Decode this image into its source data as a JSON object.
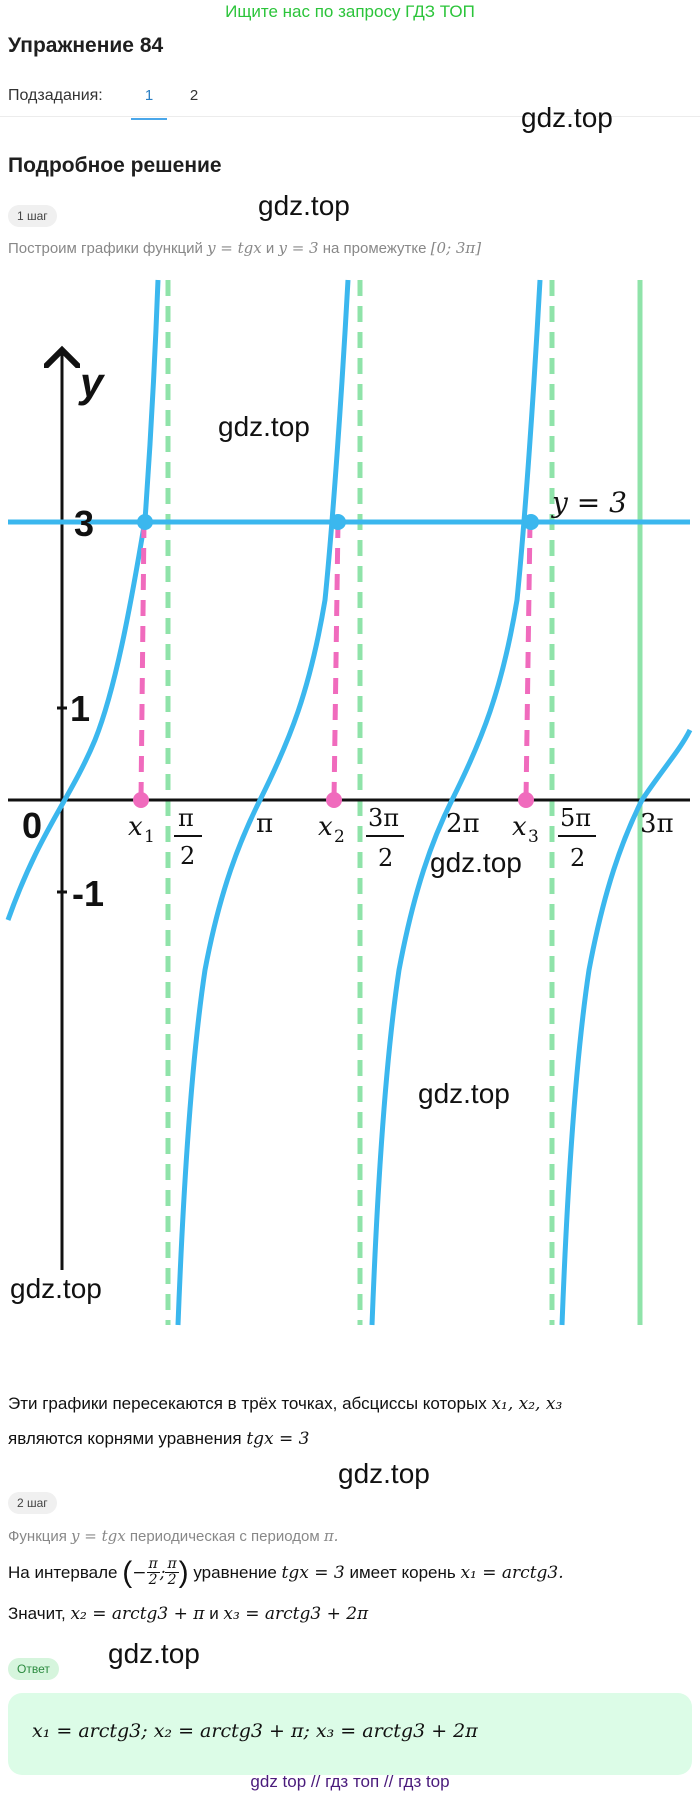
{
  "banner": "Ищите нас по запросу ГДЗ ТОП",
  "title": "Упражнение 84",
  "subtasks": {
    "label": "Подзадания:",
    "items": [
      "1",
      "2"
    ],
    "active": "1"
  },
  "watermark": "gdz.top",
  "section_title": "Подробное решение",
  "step1": {
    "badge": "1 шаг",
    "text_prefix": "Построим графики функций",
    "f1": "y = tgx",
    "and": "и",
    "f2": "y = 3",
    "text_suffix": "на промежутке",
    "interval": "[0; 3π]"
  },
  "graph": {
    "y_axis_label": "y",
    "y_ticks": [
      "3",
      "1",
      "0",
      "-1"
    ],
    "line_label": "y = 3",
    "x_labels": {
      "x1": "x",
      "x1_sub": "1",
      "x2": "x",
      "x2_sub": "2",
      "x3": "x",
      "x3_sub": "3",
      "pi": "π",
      "two_pi": "2π",
      "three_pi": "3π"
    },
    "fractions": [
      {
        "num": "π",
        "den": "2"
      },
      {
        "num": "3π",
        "den": "2"
      },
      {
        "num": "5π",
        "den": "2"
      }
    ],
    "colors": {
      "curve": "#3bb7ee",
      "asymptote": "#8fe3a9",
      "pink": "#f06bbd",
      "axis": "#111111",
      "line3": "#3bb7ee",
      "solid_green": "#8fe3a9"
    }
  },
  "conclusion": {
    "line1": "Эти графики пересекаются в трёх точках, абсциссы которых",
    "roots": "x₁,  x₂,  x₃",
    "line2": "являются корнями уравнения",
    "eq": "tgx = 3"
  },
  "step2": {
    "badge": "2 шаг",
    "line1_prefix": "Функция",
    "line1_func": "y = tgx",
    "line1_suffix": "периодическая с периодом",
    "line1_period": "π.",
    "line2_prefix": "На интервале",
    "line2_neg": "−",
    "line2_num": "π",
    "line2_den": "2",
    "line2_sep": ";",
    "line2_mid": "уравнение",
    "line2_eq": "tgx = 3",
    "line2_has": "имеет корень",
    "line2_root": "x₁ = arctg3.",
    "line3_prefix": "Значит,",
    "line3_x2": "x₂ = arctg3 + π",
    "line3_and": "и",
    "line3_x3": "x₃ = arctg3 + 2π"
  },
  "answer": {
    "badge": "Ответ",
    "text": "x₁ = arctg3; x₂ = arctg3 + π; x₃ = arctg3 + 2π"
  },
  "footer": "gdz top  //  гдз топ  //  гдз top"
}
